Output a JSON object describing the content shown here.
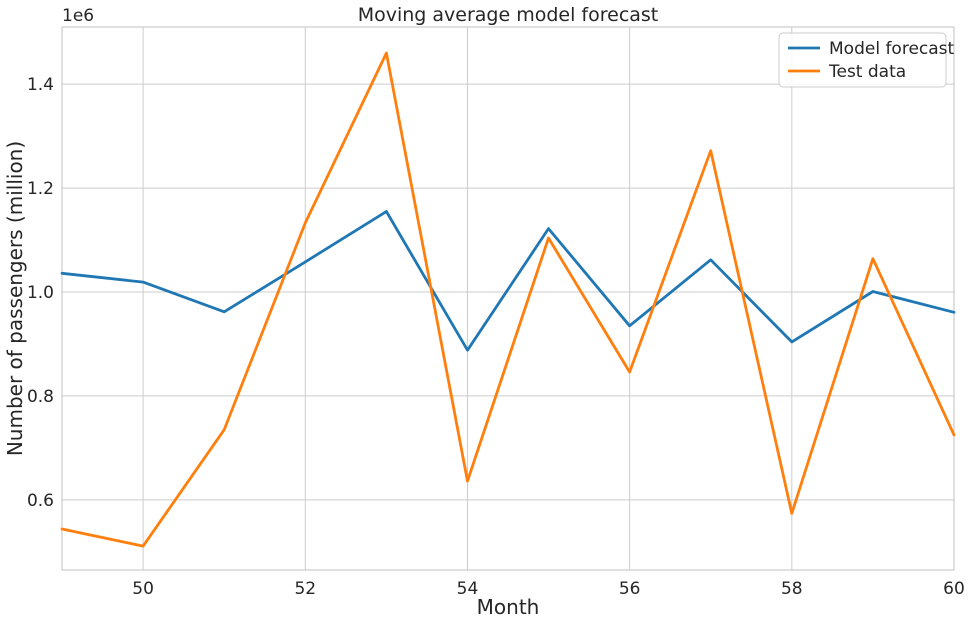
{
  "chart_data": {
    "type": "line",
    "title": "Moving average model forecast",
    "xlabel": "Month",
    "ylabel": "Number of passengers (million)",
    "y_offset_label": "1e6",
    "xlim": [
      49,
      60
    ],
    "ylim": [
      465000,
      1510000
    ],
    "x_ticks": [
      50,
      52,
      54,
      56,
      58,
      60
    ],
    "y_ticks": [
      0.6,
      0.8,
      1.0,
      1.2,
      1.4
    ],
    "y_tick_scale": 1000000,
    "grid": true,
    "legend_position": "top-right",
    "x": [
      49,
      50,
      51,
      52,
      53,
      54,
      55,
      56,
      57,
      58,
      59,
      60
    ],
    "series": [
      {
        "name": "Model forecast",
        "color": "#1f77b4",
        "values": [
          1036000,
          1019000,
          962000,
          1058000,
          1155000,
          888000,
          1122000,
          935000,
          1062000,
          904000,
          1001000,
          961000
        ]
      },
      {
        "name": "Test data",
        "color": "#ff7f0e",
        "values": [
          544000,
          511000,
          735000,
          1133000,
          1460000,
          636000,
          1104000,
          846000,
          1272000,
          574000,
          1064000,
          725000
        ]
      }
    ]
  }
}
